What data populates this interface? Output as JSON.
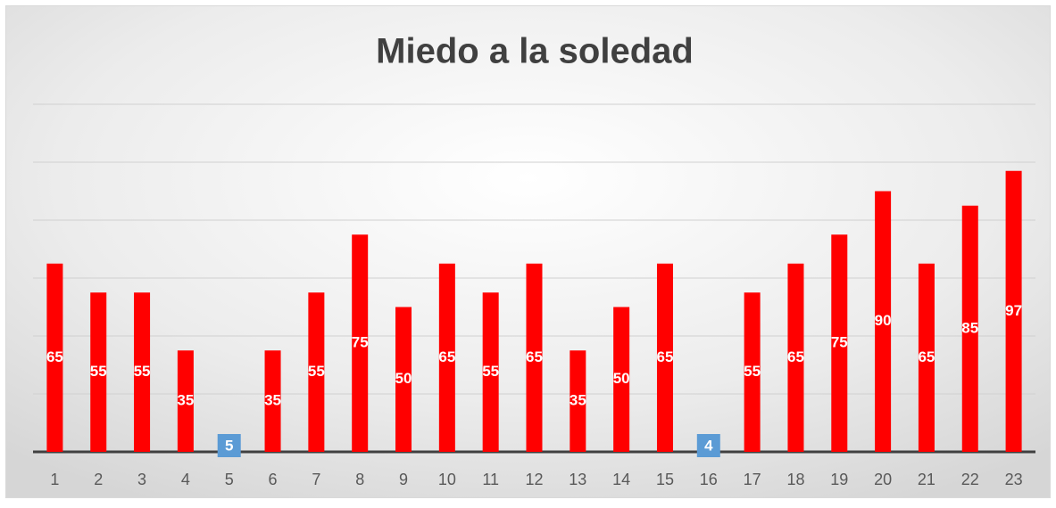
{
  "chart_data": {
    "type": "bar",
    "title": "Miedo a la soledad",
    "categories": [
      "1",
      "2",
      "3",
      "4",
      "5",
      "6",
      "7",
      "8",
      "9",
      "10",
      "11",
      "12",
      "13",
      "14",
      "15",
      "16",
      "17",
      "18",
      "19",
      "20",
      "21",
      "22",
      "23"
    ],
    "values": [
      65,
      55,
      55,
      35,
      5,
      35,
      55,
      75,
      50,
      65,
      55,
      65,
      35,
      50,
      65,
      4,
      55,
      65,
      75,
      90,
      65,
      85,
      97
    ],
    "color": "#ff0000",
    "ylim": [
      0,
      120
    ],
    "yticks": [
      0,
      20,
      40,
      60,
      80,
      100,
      120
    ],
    "grid": true
  }
}
